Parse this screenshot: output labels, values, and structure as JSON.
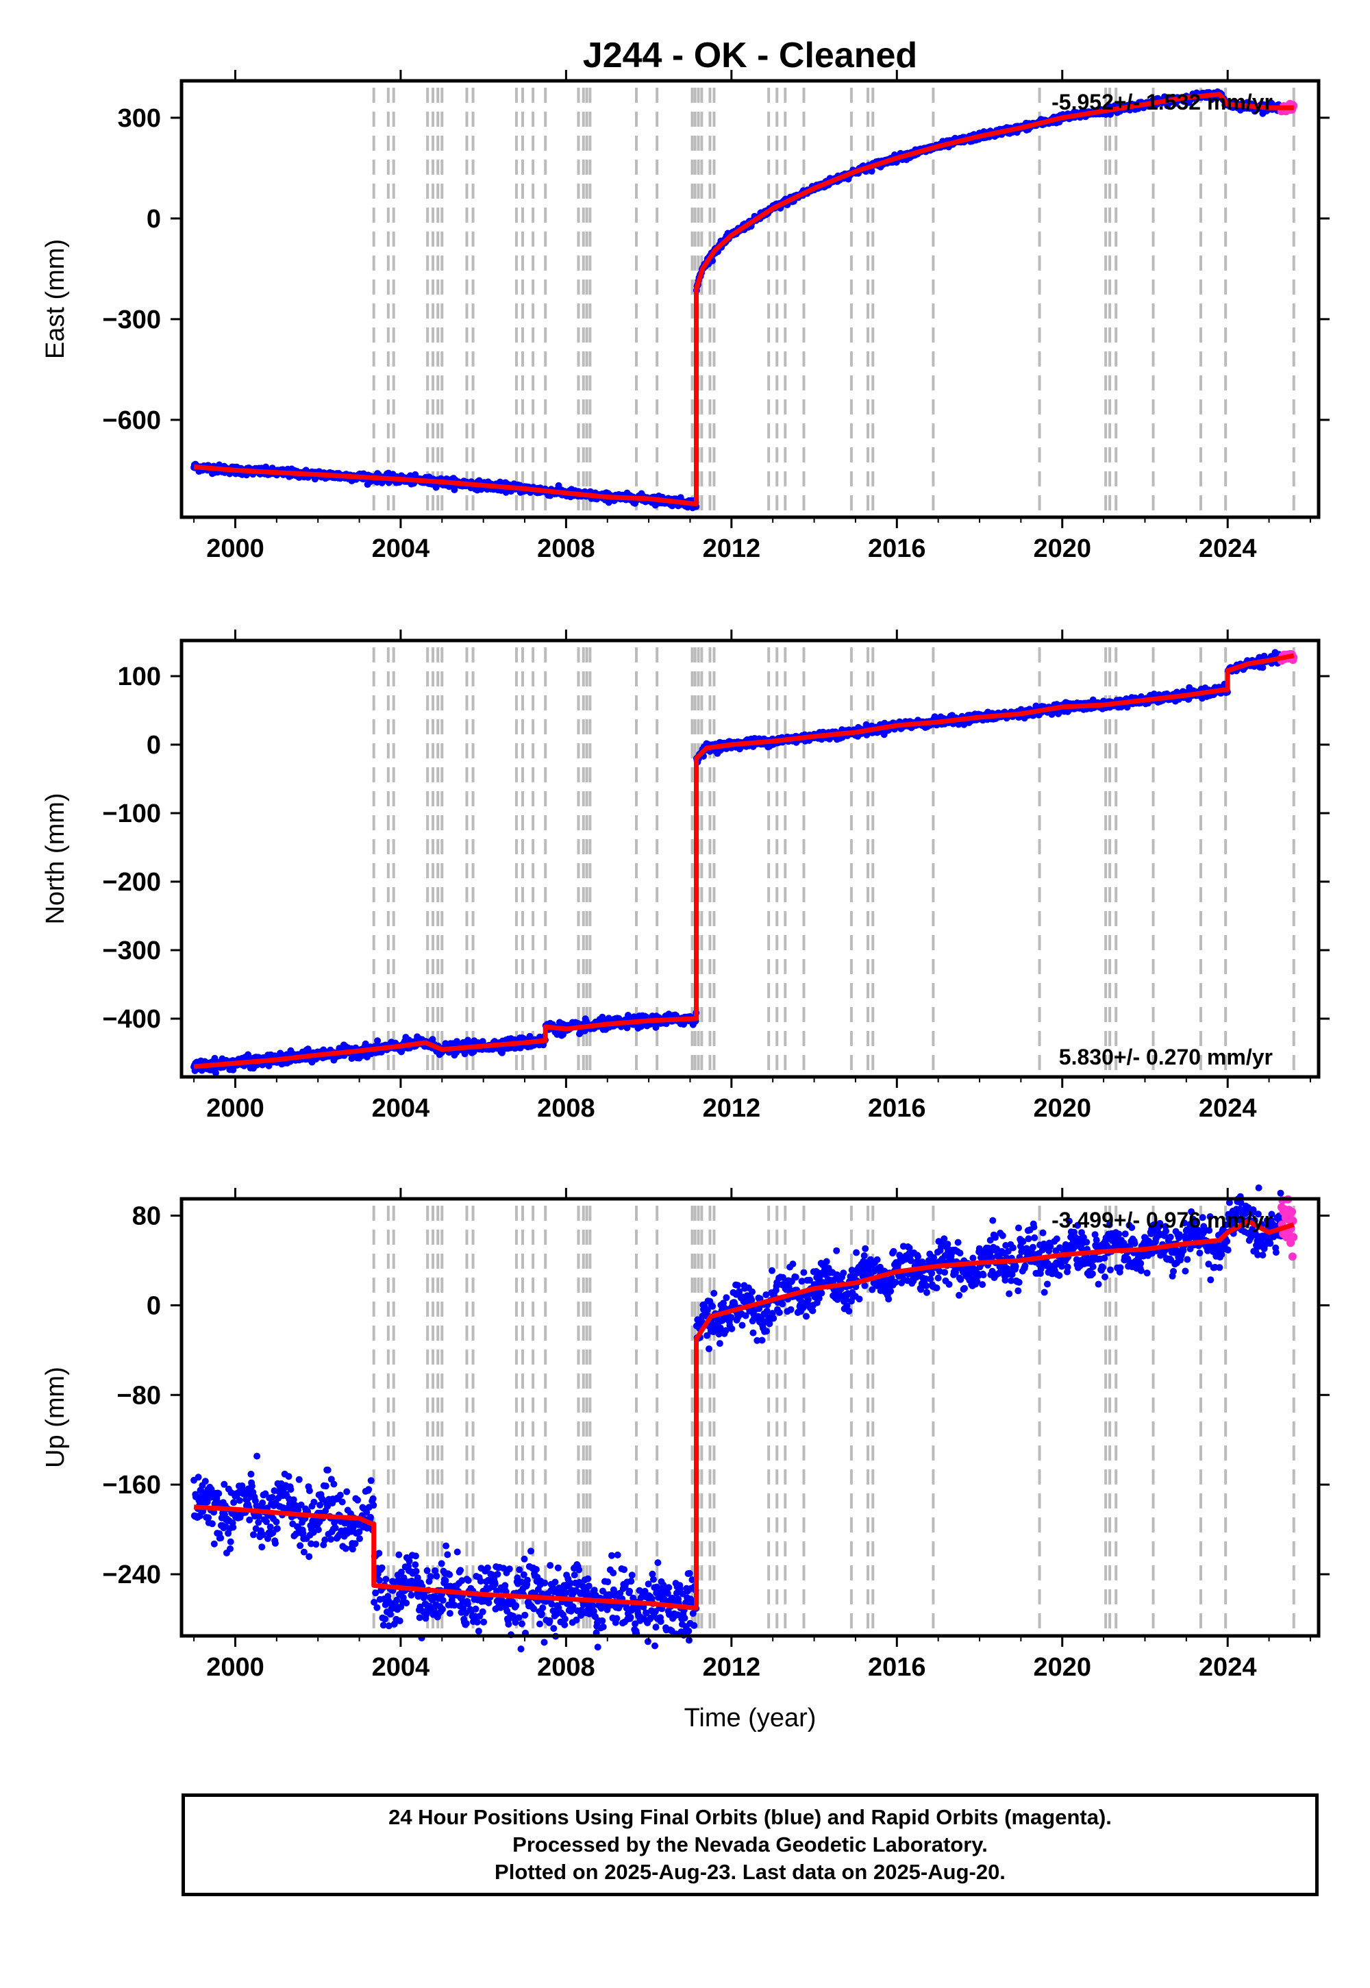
{
  "title": "J244  - OK - Cleaned",
  "colors": {
    "final_orbit_points": "#0000ff",
    "rapid_orbit_points": "#ff33cc",
    "model_line": "#ff0000",
    "event_lines": "#bbbbbb",
    "frame": "#000000"
  },
  "chart_data": [
    {
      "type": "scatter",
      "id": "east",
      "ylabel": "East (mm)",
      "xlabel": "",
      "xlim": [
        1998.7,
        2026.2
      ],
      "ylim": [
        -890,
        410
      ],
      "xticks": [
        2000,
        2004,
        2008,
        2012,
        2016,
        2020,
        2024
      ],
      "yticks": [
        -600,
        -300,
        0,
        300
      ],
      "ytick_labels": [
        "−600",
        "−300",
        "0",
        "300"
      ],
      "rate_annotation": "-5.952+/- 1.532 mm/yr",
      "annotation_position": "top-right",
      "series": [
        {
          "kind": "model",
          "points": [
            [
              1999.0,
              -740
            ],
            [
              2000.0,
              -750
            ],
            [
              2001.0,
              -757
            ],
            [
              2002.0,
              -763
            ],
            [
              2003.0,
              -770
            ],
            [
              2004.0,
              -777
            ],
            [
              2005.0,
              -785
            ],
            [
              2006.0,
              -795
            ],
            [
              2007.0,
              -805
            ],
            [
              2008.0,
              -818
            ],
            [
              2009.0,
              -830
            ],
            [
              2010.0,
              -835
            ],
            [
              2011.1,
              -850
            ],
            [
              2011.15,
              -850
            ],
            [
              2011.15,
              -210
            ],
            [
              2011.3,
              -150
            ],
            [
              2011.6,
              -95
            ],
            [
              2012.0,
              -50
            ],
            [
              2012.5,
              -10
            ],
            [
              2013.0,
              30
            ],
            [
              2014.0,
              90
            ],
            [
              2015.0,
              140
            ],
            [
              2016.0,
              180
            ],
            [
              2017.0,
              215
            ],
            [
              2018.0,
              245
            ],
            [
              2019.0,
              270
            ],
            [
              2019.5,
              285
            ],
            [
              2020.0,
              300
            ],
            [
              2021.0,
              320
            ],
            [
              2022.0,
              340
            ],
            [
              2023.0,
              360
            ],
            [
              2023.8,
              370
            ],
            [
              2024.0,
              340
            ],
            [
              2024.5,
              335
            ],
            [
              2025.0,
              330
            ],
            [
              2025.6,
              330
            ]
          ]
        }
      ],
      "event_years": [
        2003.35,
        2003.7,
        2003.83,
        2004.65,
        2004.78,
        2004.9,
        2005.0,
        2005.6,
        2005.75,
        2006.8,
        2006.95,
        2007.2,
        2007.5,
        2008.3,
        2008.42,
        2008.5,
        2008.58,
        2009.7,
        2010.2,
        2011.05,
        2011.12,
        2011.2,
        2011.28,
        2011.48,
        2011.58,
        2012.9,
        2013.1,
        2013.3,
        2013.75,
        2014.9,
        2015.3,
        2015.42,
        2016.88,
        2019.45,
        2021.05,
        2021.15,
        2021.3,
        2022.2,
        2023.35,
        2023.95,
        2025.6
      ],
      "scatter_band": {
        "pre_noise": 6,
        "post_noise": 5,
        "rapid_from": 2025.3
      }
    },
    {
      "type": "scatter",
      "id": "north",
      "ylabel": "North (mm)",
      "xlabel": "",
      "xlim": [
        1998.7,
        2026.2
      ],
      "ylim": [
        -485,
        152
      ],
      "xticks": [
        2000,
        2004,
        2008,
        2012,
        2016,
        2020,
        2024
      ],
      "yticks": [
        -400,
        -300,
        -200,
        -100,
        0,
        100
      ],
      "ytick_labels": [
        "−400",
        "−300",
        "−200",
        "−100",
        "0",
        "100"
      ],
      "rate_annotation": "5.830+/- 0.270 mm/yr",
      "annotation_position": "bottom-right",
      "series": [
        {
          "kind": "model",
          "points": [
            [
              1999.0,
              -470
            ],
            [
              2000.0,
              -465
            ],
            [
              2001.0,
              -460
            ],
            [
              2002.0,
              -453
            ],
            [
              2003.0,
              -447
            ],
            [
              2004.0,
              -440
            ],
            [
              2004.6,
              -435
            ],
            [
              2005.0,
              -445
            ],
            [
              2006.0,
              -440
            ],
            [
              2007.0,
              -435
            ],
            [
              2007.5,
              -432
            ],
            [
              2007.5,
              -412
            ],
            [
              2008.0,
              -415
            ],
            [
              2009.0,
              -408
            ],
            [
              2010.0,
              -403
            ],
            [
              2011.1,
              -400
            ],
            [
              2011.15,
              -400
            ],
            [
              2011.15,
              -20
            ],
            [
              2011.4,
              -5
            ],
            [
              2012.0,
              0
            ],
            [
              2013.0,
              5
            ],
            [
              2014.0,
              12
            ],
            [
              2015.0,
              18
            ],
            [
              2016.0,
              28
            ],
            [
              2017.0,
              33
            ],
            [
              2018.0,
              40
            ],
            [
              2019.0,
              45
            ],
            [
              2020.0,
              55
            ],
            [
              2021.0,
              58
            ],
            [
              2022.0,
              65
            ],
            [
              2023.0,
              72
            ],
            [
              2023.9,
              80
            ],
            [
              2024.0,
              80
            ],
            [
              2024.0,
              108
            ],
            [
              2024.5,
              118
            ],
            [
              2025.0,
              123
            ],
            [
              2025.6,
              130
            ]
          ]
        }
      ],
      "event_years": [
        2003.35,
        2003.7,
        2003.83,
        2004.65,
        2004.78,
        2004.9,
        2005.0,
        2005.6,
        2005.75,
        2006.8,
        2006.95,
        2007.2,
        2007.5,
        2008.3,
        2008.42,
        2008.5,
        2008.58,
        2009.7,
        2010.2,
        2011.05,
        2011.12,
        2011.2,
        2011.28,
        2011.48,
        2011.58,
        2012.9,
        2013.1,
        2013.3,
        2013.75,
        2014.9,
        2015.3,
        2015.42,
        2016.88,
        2019.45,
        2021.05,
        2021.15,
        2021.3,
        2022.2,
        2023.35,
        2023.95,
        2025.6
      ],
      "scatter_band": {
        "pre_noise": 4,
        "post_noise": 3,
        "rapid_from": 2025.3
      }
    },
    {
      "type": "scatter",
      "id": "up",
      "ylabel": "Up (mm)",
      "xlabel": "Time (year)",
      "xlim": [
        1998.7,
        2026.2
      ],
      "ylim": [
        -295,
        95
      ],
      "xticks": [
        2000,
        2004,
        2008,
        2012,
        2016,
        2020,
        2024
      ],
      "yticks": [
        -240,
        -160,
        -80,
        0,
        80
      ],
      "ytick_labels": [
        "−240",
        "−160",
        "−80",
        "0",
        "80"
      ],
      "rate_annotation": "-3.499+/- 0.976 mm/yr",
      "annotation_position": "top-right",
      "series": [
        {
          "kind": "model",
          "points": [
            [
              1999.0,
              -180
            ],
            [
              2000.0,
              -182
            ],
            [
              2001.0,
              -185
            ],
            [
              2002.0,
              -188
            ],
            [
              2003.0,
              -190
            ],
            [
              2003.3,
              -195
            ],
            [
              2003.35,
              -195
            ],
            [
              2003.35,
              -250
            ],
            [
              2004.0,
              -252
            ],
            [
              2005.0,
              -255
            ],
            [
              2006.0,
              -258
            ],
            [
              2007.0,
              -260
            ],
            [
              2008.0,
              -262
            ],
            [
              2009.0,
              -264
            ],
            [
              2010.0,
              -266
            ],
            [
              2011.1,
              -270
            ],
            [
              2011.15,
              -270
            ],
            [
              2011.15,
              -30
            ],
            [
              2011.5,
              -10
            ],
            [
              2012.0,
              -5
            ],
            [
              2013.0,
              5
            ],
            [
              2014.0,
              15
            ],
            [
              2015.0,
              20
            ],
            [
              2016.0,
              30
            ],
            [
              2017.0,
              35
            ],
            [
              2018.0,
              38
            ],
            [
              2019.0,
              40
            ],
            [
              2020.0,
              45
            ],
            [
              2021.0,
              48
            ],
            [
              2022.0,
              50
            ],
            [
              2023.0,
              55
            ],
            [
              2023.8,
              58
            ],
            [
              2024.0,
              65
            ],
            [
              2024.5,
              75
            ],
            [
              2025.0,
              65
            ],
            [
              2025.6,
              72
            ]
          ]
        }
      ],
      "event_years": [
        2003.35,
        2003.7,
        2003.83,
        2004.65,
        2004.78,
        2004.9,
        2005.0,
        2005.6,
        2005.75,
        2006.8,
        2006.95,
        2007.2,
        2007.5,
        2008.3,
        2008.42,
        2008.5,
        2008.58,
        2009.7,
        2010.2,
        2011.05,
        2011.12,
        2011.2,
        2011.28,
        2011.48,
        2011.58,
        2012.9,
        2013.1,
        2013.3,
        2013.75,
        2014.9,
        2015.3,
        2015.42,
        2016.88,
        2019.45,
        2021.05,
        2021.15,
        2021.3,
        2022.2,
        2023.35,
        2023.95,
        2025.6
      ],
      "scatter_band": {
        "pre_noise": 14,
        "post_noise": 10,
        "seasonal_amp": 8,
        "rapid_from": 2025.3
      }
    }
  ],
  "caption": {
    "line1": "24 Hour Positions Using Final Orbits (blue) and Rapid Orbits (magenta).",
    "line2": "Processed by the Nevada Geodetic Laboratory.",
    "line3": "Plotted on 2025-Aug-23. Last data on 2025-Aug-20."
  }
}
